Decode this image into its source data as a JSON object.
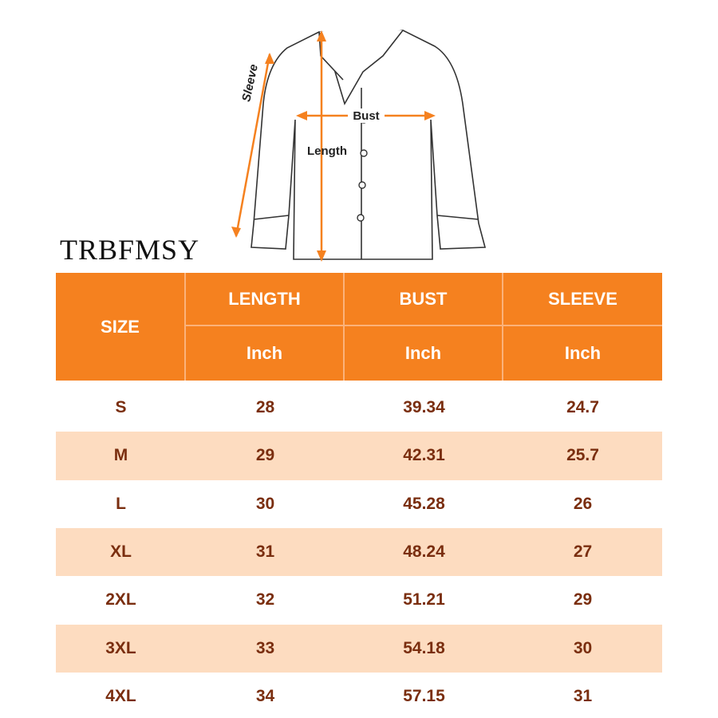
{
  "brand": "TRBFMSY",
  "diagram": {
    "sleeve": "Sleeve",
    "bust": "Bust",
    "length": "Length"
  },
  "table": {
    "header": {
      "size": "SIZE",
      "columns": [
        "LENGTH",
        "BUST",
        "SLEEVE"
      ],
      "unit": "Inch"
    },
    "rows": [
      [
        "S",
        "28",
        "39.34",
        "24.7"
      ],
      [
        "M",
        "29",
        "42.31",
        "25.7"
      ],
      [
        "L",
        "30",
        "45.28",
        "26"
      ],
      [
        "XL",
        "31",
        "48.24",
        "27"
      ],
      [
        "2XL",
        "32",
        "51.21",
        "29"
      ],
      [
        "3XL",
        "33",
        "54.18",
        "30"
      ],
      [
        "4XL",
        "34",
        "57.15",
        "31"
      ]
    ]
  }
}
